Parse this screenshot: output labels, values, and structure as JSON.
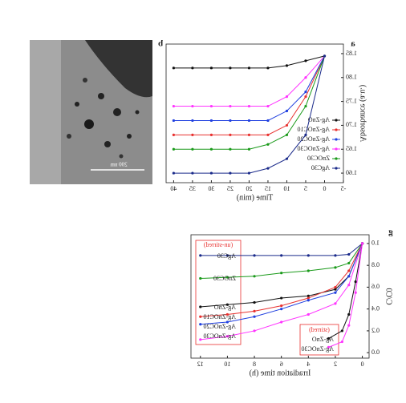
{
  "tem_image": {
    "panel_label": "a",
    "scale_label": "200 nm"
  },
  "chart_data": [
    {
      "type": "line",
      "panel_label": "b",
      "x_label": "Time (min)",
      "y_label": "Absorbance (a.u.)",
      "x": [
        0,
        5,
        10,
        15,
        20,
        25,
        30,
        35,
        40
      ],
      "xlim": [
        -5,
        42
      ],
      "xticks": [
        -5,
        0,
        5,
        10,
        15,
        20,
        25,
        30,
        35,
        40
      ],
      "ylim": [
        1.58,
        1.87
      ],
      "yticks": [
        {
          "value": 1.6,
          "label": "1.60"
        },
        1.65,
        {
          "value": 1.7,
          "label": "1.70"
        },
        1.75,
        {
          "value": 1.8,
          "label": "1.80"
        },
        1.85
      ],
      "series": [
        {
          "name": "Ag-ZnO",
          "color": "#111111",
          "values": [
            1.845,
            1.835,
            1.825,
            1.82,
            1.82,
            1.82,
            1.82,
            1.82,
            1.82
          ]
        },
        {
          "name": "Ag-ZnOC10",
          "color": "#e8312f",
          "values": [
            1.845,
            1.76,
            1.7,
            1.68,
            1.68,
            1.68,
            1.68,
            1.68,
            1.68
          ]
        },
        {
          "name": "Ag-ZnOC20",
          "color": "#2040e0",
          "values": [
            1.845,
            1.77,
            1.73,
            1.71,
            1.71,
            1.71,
            1.71,
            1.71,
            1.71
          ]
        },
        {
          "name": "Ag-ZnOC30",
          "color": "#ff33ff",
          "values": [
            1.845,
            1.8,
            1.76,
            1.74,
            1.74,
            1.74,
            1.74,
            1.74,
            1.74
          ]
        },
        {
          "name": "ZnOC30",
          "color": "#1a9a1a",
          "values": [
            1.845,
            1.74,
            1.68,
            1.66,
            1.65,
            1.65,
            1.65,
            1.65,
            1.65
          ]
        },
        {
          "name": "AgC30",
          "color": "#1a2a8a",
          "values": [
            1.845,
            1.68,
            1.63,
            1.61,
            1.6,
            1.6,
            1.6,
            1.6,
            1.6
          ]
        }
      ]
    },
    {
      "type": "line",
      "panel_label": "g",
      "x_label": "Irradiation time (h)",
      "y_label": "C/C0",
      "annotations": [
        "(un-stirred)",
        "(stirred)"
      ],
      "xlim": [
        -0.5,
        12.7
      ],
      "xticks": [
        0,
        2,
        4,
        6,
        8,
        10,
        12
      ],
      "ylim": [
        -0.05,
        1.08
      ],
      "yticks": [
        {
          "value": 0,
          "label": "0.0"
        },
        0.2,
        0.4,
        0.6,
        0.8,
        {
          "value": 1,
          "label": "1.0"
        }
      ],
      "series": [
        {
          "name": "AgC30",
          "color": "#1a2a8a",
          "x": [
            0,
            1,
            2,
            4,
            6,
            8,
            10,
            12
          ],
          "values": [
            1.0,
            0.9,
            0.89,
            0.89,
            0.89,
            0.89,
            0.89,
            0.89
          ]
        },
        {
          "name": "ZnOC30",
          "color": "#1a9a1a",
          "x": [
            0,
            1,
            2,
            4,
            6,
            8,
            10,
            12
          ],
          "values": [
            1.0,
            0.82,
            0.78,
            0.75,
            0.73,
            0.7,
            0.69,
            0.68
          ]
        },
        {
          "name": "Ag-ZnO",
          "color": "#111111",
          "x": [
            0,
            1,
            2,
            4,
            6,
            8,
            10,
            12
          ],
          "values": [
            1.0,
            0.7,
            0.58,
            0.52,
            0.5,
            0.46,
            0.44,
            0.42
          ]
        },
        {
          "name": "Ag-ZnOC10",
          "color": "#e8312f",
          "x": [
            0,
            1,
            2,
            4,
            6,
            8,
            10,
            12
          ],
          "values": [
            1.0,
            0.75,
            0.6,
            0.5,
            0.43,
            0.38,
            0.35,
            0.33
          ]
        },
        {
          "name": "Ag-ZnOC20",
          "color": "#2040e0",
          "x": [
            0,
            1,
            2,
            4,
            6,
            8,
            10,
            12
          ],
          "values": [
            1.0,
            0.7,
            0.55,
            0.48,
            0.4,
            0.33,
            0.28,
            0.26
          ]
        },
        {
          "name": "Ag-ZnOC30",
          "color": "#ff33ff",
          "x": [
            0,
            1,
            2,
            4,
            6,
            8,
            10,
            12
          ],
          "values": [
            1.0,
            0.62,
            0.45,
            0.35,
            0.28,
            0.2,
            0.15,
            0.12
          ]
        },
        {
          "name": "Ag-ZnO",
          "color": "#111111",
          "x": [
            0,
            0.5,
            1,
            1.5,
            2.5
          ],
          "values": [
            1.0,
            0.65,
            0.35,
            0.2,
            0.13
          ]
        },
        {
          "name": "Ag-ZnOC30",
          "color": "#ff33ff",
          "x": [
            0,
            0.5,
            1,
            1.5,
            2.5
          ],
          "values": [
            1.0,
            0.55,
            0.25,
            0.1,
            0.05
          ]
        }
      ]
    }
  ]
}
